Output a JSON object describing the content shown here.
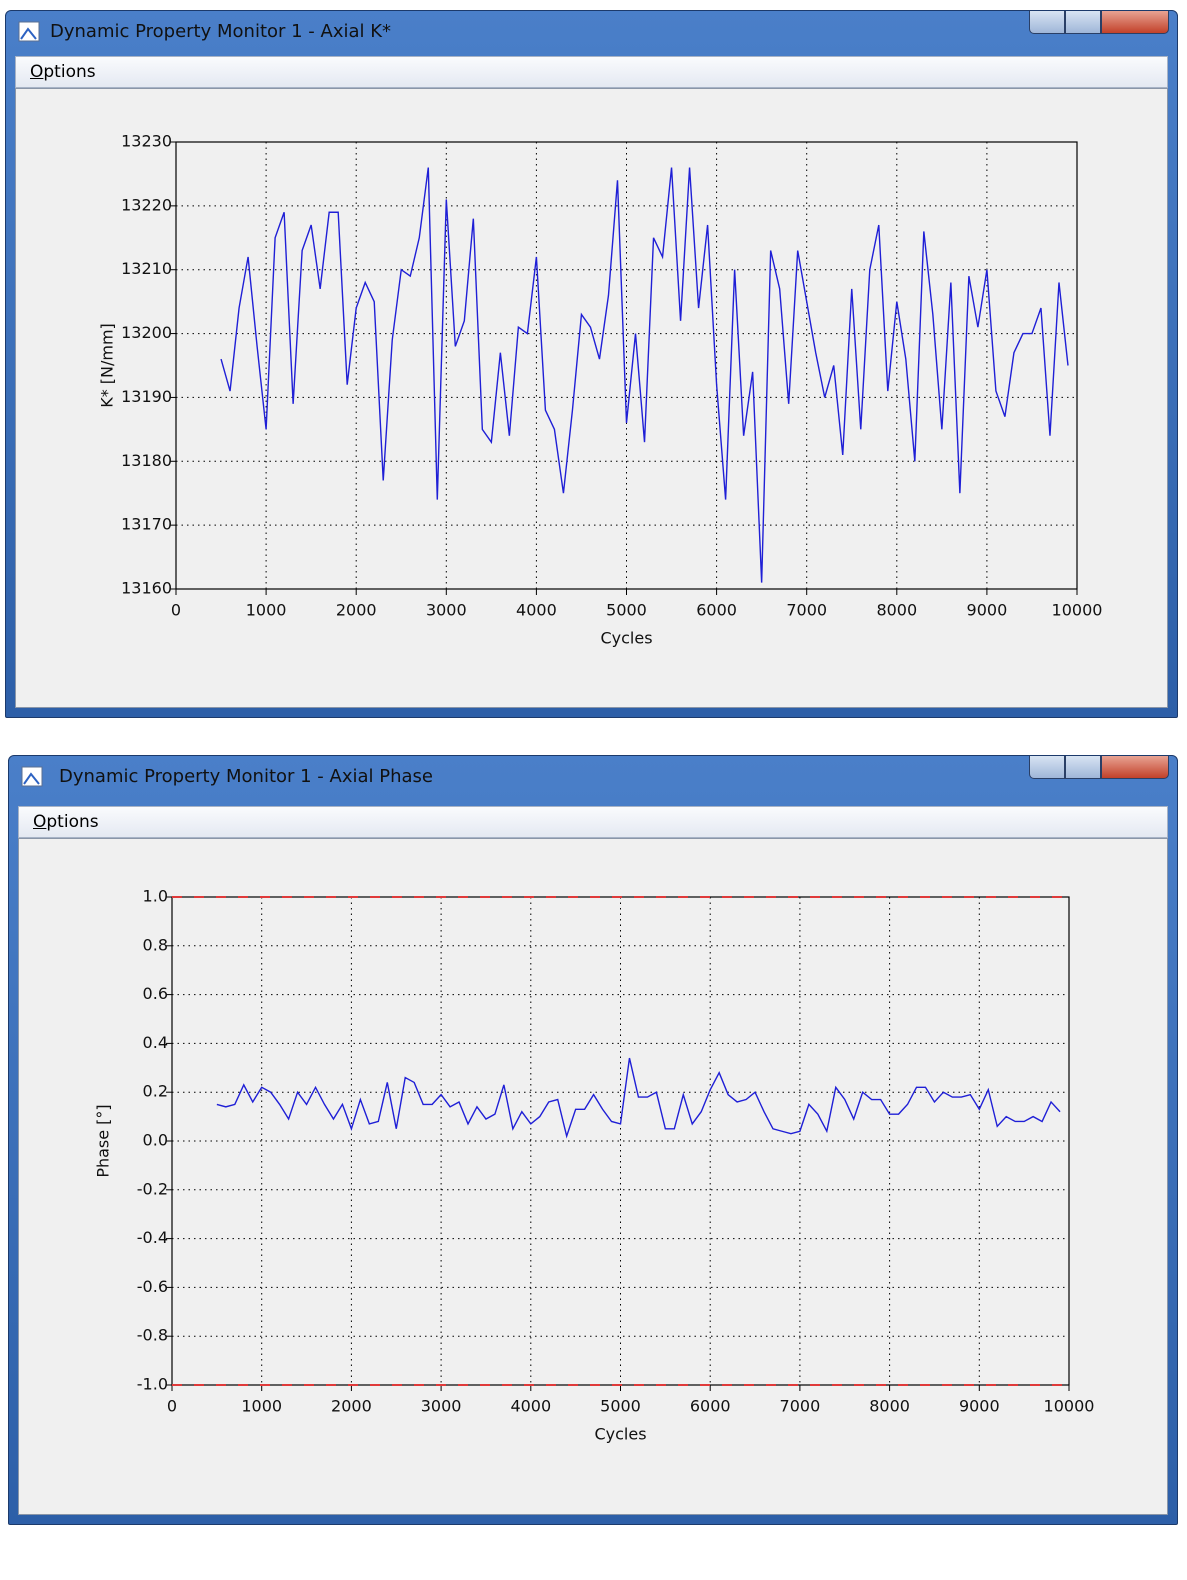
{
  "windows": [
    {
      "title": "Dynamic Property Monitor 1 - Axial K*",
      "menu": "Options"
    },
    {
      "title": "Dynamic Property Monitor 1 - Axial Phase",
      "menu": "Options"
    }
  ],
  "chart_data": [
    {
      "type": "line",
      "xlabel": "Cycles",
      "ylabel": "K* [N/mm]",
      "x": [
        500,
        600,
        700,
        800,
        900,
        1000,
        1100,
        1200,
        1300,
        1400,
        1500,
        1600,
        1700,
        1800,
        1900,
        2000,
        2100,
        2200,
        2300,
        2400,
        2500,
        2600,
        2700,
        2800,
        2900,
        3000,
        3100,
        3200,
        3300,
        3400,
        3500,
        3600,
        3700,
        3800,
        3900,
        4000,
        4100,
        4200,
        4300,
        4400,
        4500,
        4600,
        4700,
        4800,
        4900,
        5000,
        5100,
        5200,
        5300,
        5400,
        5500,
        5600,
        5700,
        5800,
        5900,
        6000,
        6100,
        6200,
        6300,
        6400,
        6500,
        6600,
        6700,
        6800,
        6900,
        7000,
        7100,
        7200,
        7300,
        7400,
        7500,
        7600,
        7700,
        7800,
        7900,
        8000,
        8100,
        8200,
        8300,
        8400,
        8500,
        8600,
        8700,
        8800,
        8900,
        9000,
        9100,
        9200,
        9300,
        9400,
        9500,
        9600,
        9700,
        9800,
        9900
      ],
      "series": [
        {
          "color": "#1f1fd6",
          "values": [
            13196,
            13191,
            13204,
            13212,
            13198,
            13185,
            13215,
            13219,
            13189,
            13213,
            13217,
            13207,
            13219,
            13219,
            13192,
            13204,
            13208,
            13205,
            13177,
            13199,
            13210,
            13209,
            13215,
            13226,
            13174,
            13221,
            13198,
            13202,
            13218,
            13185,
            13183,
            13197,
            13184,
            13201,
            13200,
            13212,
            13188,
            13185,
            13175,
            13188,
            13203,
            13201,
            13196,
            13206,
            13224,
            13186,
            13200,
            13183,
            13215,
            13212,
            13226,
            13202,
            13226,
            13204,
            13217,
            13192,
            13174,
            13210,
            13184,
            13194,
            13161,
            13213,
            13207,
            13189,
            13213,
            13205,
            13197,
            13190,
            13195,
            13181,
            13207,
            13185,
            13210,
            13217,
            13191,
            13205,
            13196,
            13180,
            13216,
            13203,
            13185,
            13208,
            13175,
            13209,
            13201,
            13210,
            13191,
            13187,
            13197,
            13200,
            13200,
            13204,
            13184,
            13208,
            13195
          ]
        }
      ],
      "xlim": [
        0,
        10000
      ],
      "ylim": [
        13160,
        13230
      ],
      "xticks": [
        0,
        1000,
        2000,
        3000,
        4000,
        5000,
        6000,
        7000,
        8000,
        9000,
        10000
      ],
      "yticks": [
        13160,
        13170,
        13180,
        13190,
        13200,
        13210,
        13220,
        13230
      ],
      "grid": true
    },
    {
      "type": "line",
      "xlabel": "Cycles",
      "ylabel": "Phase [°]",
      "x": [
        500,
        600,
        700,
        800,
        900,
        1000,
        1100,
        1200,
        1300,
        1400,
        1500,
        1600,
        1700,
        1800,
        1900,
        2000,
        2100,
        2200,
        2300,
        2400,
        2500,
        2600,
        2700,
        2800,
        2900,
        3000,
        3100,
        3200,
        3300,
        3400,
        3500,
        3600,
        3700,
        3800,
        3900,
        4000,
        4100,
        4200,
        4300,
        4400,
        4500,
        4600,
        4700,
        4800,
        4900,
        5000,
        5100,
        5200,
        5300,
        5400,
        5500,
        5600,
        5700,
        5800,
        5900,
        6000,
        6100,
        6200,
        6300,
        6400,
        6500,
        6600,
        6700,
        6800,
        6900,
        7000,
        7100,
        7200,
        7300,
        7400,
        7500,
        7600,
        7700,
        7800,
        7900,
        8000,
        8100,
        8200,
        8300,
        8400,
        8500,
        8600,
        8700,
        8800,
        8900,
        9000,
        9100,
        9200,
        9300,
        9400,
        9500,
        9600,
        9700,
        9800,
        9900
      ],
      "series": [
        {
          "color": "#1f1fd6",
          "values": [
            0.15,
            0.14,
            0.15,
            0.23,
            0.16,
            0.22,
            0.2,
            0.15,
            0.09,
            0.2,
            0.15,
            0.22,
            0.15,
            0.09,
            0.15,
            0.05,
            0.17,
            0.07,
            0.08,
            0.24,
            0.05,
            0.26,
            0.24,
            0.15,
            0.15,
            0.19,
            0.14,
            0.16,
            0.07,
            0.14,
            0.09,
            0.11,
            0.23,
            0.05,
            0.12,
            0.07,
            0.1,
            0.16,
            0.17,
            0.02,
            0.13,
            0.13,
            0.19,
            0.13,
            0.08,
            0.07,
            0.34,
            0.18,
            0.18,
            0.2,
            0.05,
            0.05,
            0.19,
            0.07,
            0.12,
            0.21,
            0.28,
            0.19,
            0.16,
            0.17,
            0.2,
            0.12,
            0.05,
            0.04,
            0.03,
            0.04,
            0.15,
            0.11,
            0.04,
            0.22,
            0.17,
            0.09,
            0.2,
            0.17,
            0.17,
            0.11,
            0.11,
            0.15,
            0.22,
            0.22,
            0.16,
            0.2,
            0.18,
            0.18,
            0.19,
            0.13,
            0.21,
            0.06,
            0.1,
            0.08,
            0.08,
            0.1,
            0.08,
            0.16,
            0.12
          ]
        }
      ],
      "xlim": [
        0,
        10000
      ],
      "ylim": [
        -1,
        1
      ],
      "xticks": [
        0,
        1000,
        2000,
        3000,
        4000,
        5000,
        6000,
        7000,
        8000,
        9000,
        10000
      ],
      "yticks": [
        {
          "value": -1,
          "label": "-1.0"
        },
        -0.8,
        -0.6,
        -0.4,
        -0.2,
        {
          "value": 0,
          "label": "0.0"
        },
        0.2,
        0.4,
        0.6,
        0.8,
        {
          "value": 1,
          "label": "1.0"
        }
      ],
      "limit_lines": {
        "values": [
          -1,
          1
        ],
        "color": "#e03a3a"
      },
      "grid": true
    }
  ]
}
